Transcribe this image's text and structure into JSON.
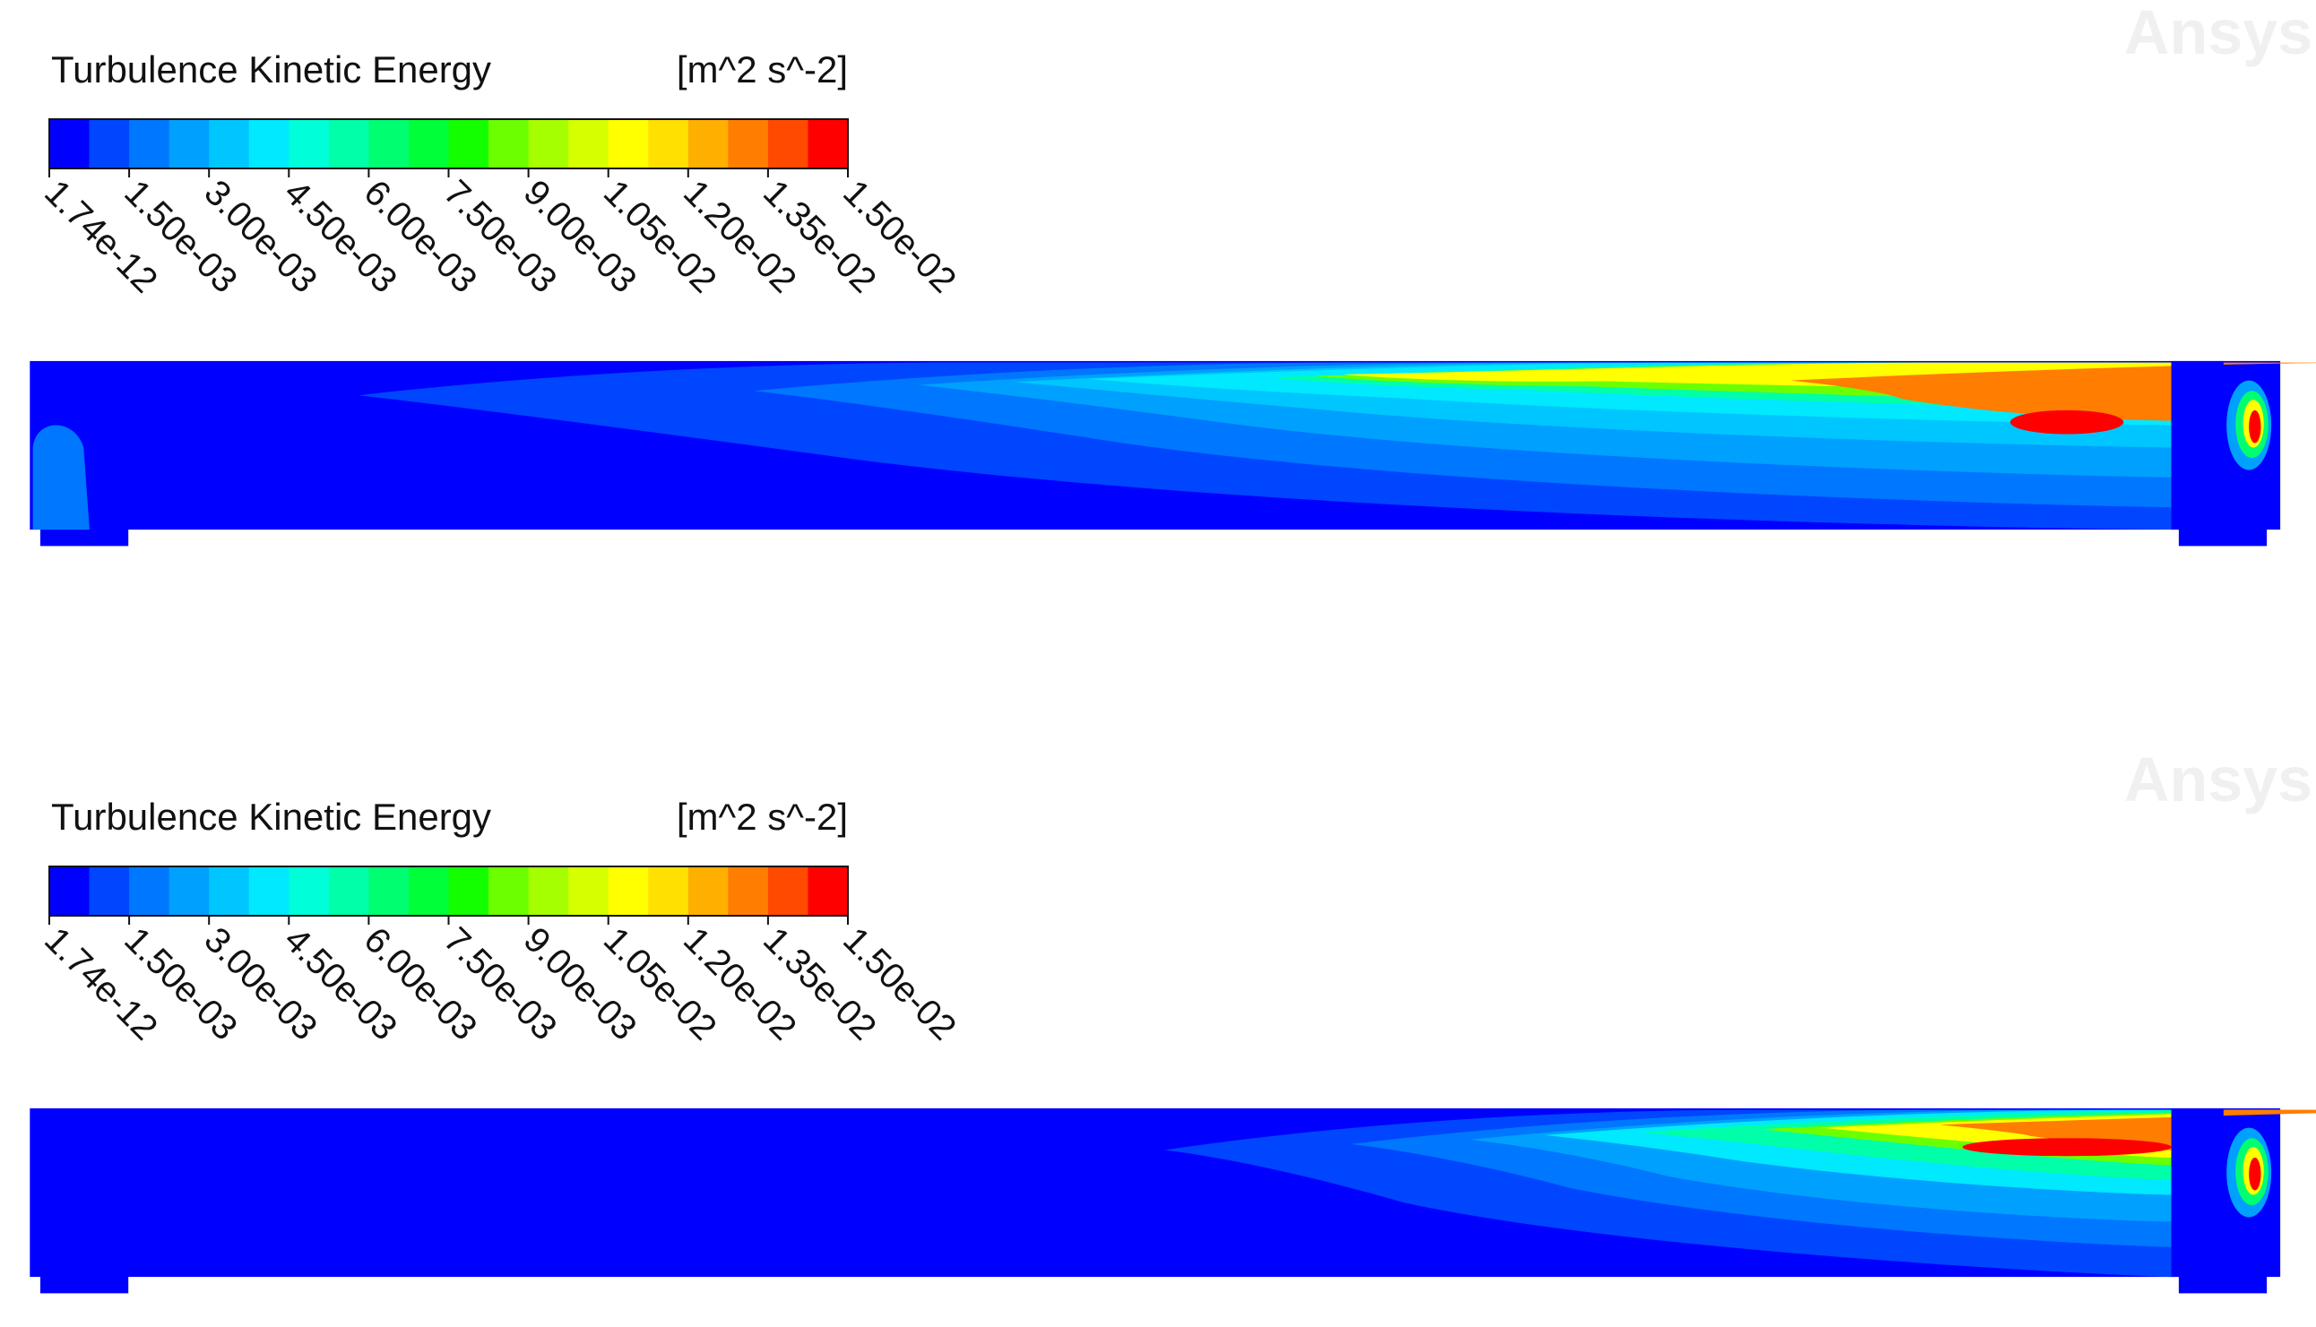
{
  "colormap": [
    "#0000ff",
    "#0046ff",
    "#0077ff",
    "#00a0ff",
    "#00c6ff",
    "#00e9ff",
    "#00ffd9",
    "#00ffa8",
    "#00ff70",
    "#00ff38",
    "#13ff00",
    "#6cff00",
    "#a6ff00",
    "#d6ff00",
    "#ffff00",
    "#ffe000",
    "#ffaf00",
    "#ff7d00",
    "#ff4a00",
    "#ff0000"
  ],
  "panels": [
    {
      "title": "Turbulence Kinetic Energy",
      "units": "[m^2 s^-2]",
      "watermark": "Ansys",
      "tick_labels": [
        "1.74e-12",
        "1.50e-03",
        "3.00e-03",
        "4.50e-03",
        "6.00e-03",
        "7.50e-03",
        "9.00e-03",
        "1.05e-02",
        "1.20e-02",
        "1.35e-02",
        "1.50e-02"
      ]
    },
    {
      "title": "Turbulence Kinetic Energy",
      "units": "[m^2 s^-2]",
      "watermark": "Ansys",
      "tick_labels": [
        "1.74e-12",
        "1.50e-03",
        "3.00e-03",
        "4.50e-03",
        "6.00e-03",
        "7.50e-03",
        "9.00e-03",
        "1.05e-02",
        "1.20e-02",
        "1.35e-02",
        "1.50e-02"
      ]
    }
  ]
}
